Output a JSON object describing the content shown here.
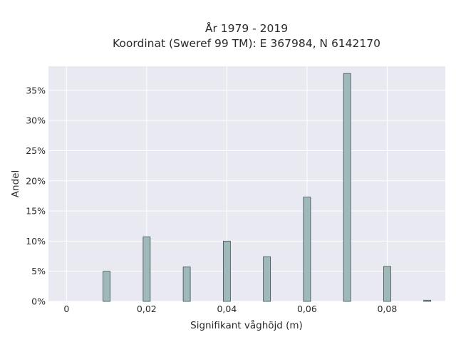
{
  "chart_data": {
    "type": "bar",
    "title": "År 1979 - 2019",
    "subtitle": "Koordinat (Sweref 99 TM): E 367984, N 6142170",
    "xlabel": "Signifikant våghöjd (m)",
    "ylabel": "Andel",
    "x": [
      0.01,
      0.02,
      0.03,
      0.04,
      0.05,
      0.06,
      0.07,
      0.08,
      0.09
    ],
    "values": [
      5.0,
      10.7,
      5.7,
      10.0,
      7.4,
      17.3,
      37.8,
      5.8,
      0.2
    ],
    "xlim": [
      -0.0045,
      0.0945
    ],
    "ylim": [
      0,
      39
    ],
    "xticks": [
      0,
      0.02,
      0.04,
      0.06,
      0.08
    ],
    "xtick_labels": [
      "0",
      "0,02",
      "0,04",
      "0,06",
      "0,08"
    ],
    "yticks": [
      0,
      5,
      10,
      15,
      20,
      25,
      30,
      35
    ],
    "ytick_labels": [
      "0%",
      "5%",
      "10%",
      "15%",
      "20%",
      "25%",
      "30%",
      "35%"
    ],
    "grid": true,
    "bar_color": "#9fb8b9",
    "bar_edge_color": "#3f4f50",
    "plot_bg_color": "#e9e9f1",
    "grid_color": "#ffffff"
  }
}
